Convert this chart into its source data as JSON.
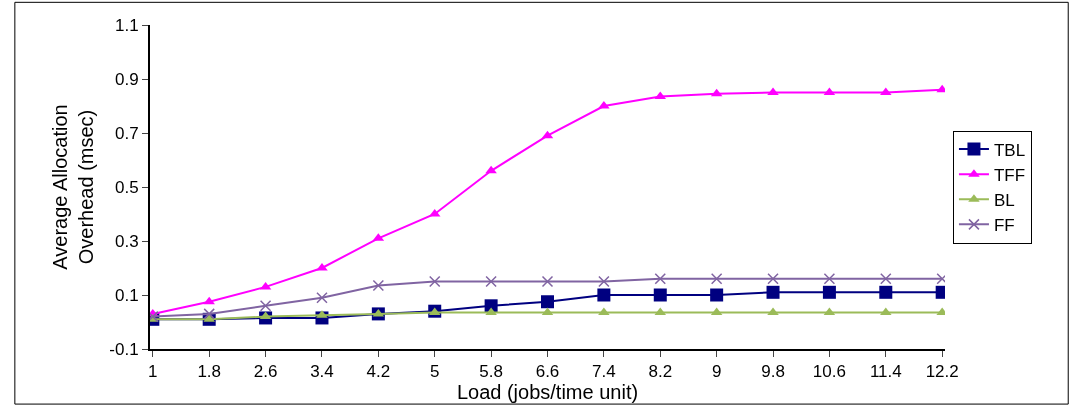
{
  "chart_data": {
    "type": "line",
    "xlabel": "Load (jobs/time unit)",
    "ylabel": "Average Allocation Overhead (msec)",
    "categories": [
      "1",
      "1.8",
      "2.6",
      "3.4",
      "4.2",
      "5",
      "5.8",
      "6.6",
      "7.4",
      "8.2",
      "9",
      "9.8",
      "10.6",
      "11.4",
      "12.2"
    ],
    "series": [
      {
        "name": "TBL",
        "color": "#000080",
        "marker": "square",
        "values": [
          0.01,
          0.01,
          0.015,
          0.015,
          0.03,
          0.04,
          0.06,
          0.075,
          0.1,
          0.1,
          0.1,
          0.11,
          0.11,
          0.11,
          0.11
        ]
      },
      {
        "name": "TFF",
        "color": "#ff00ff",
        "marker": "triangle",
        "values": [
          0.03,
          0.075,
          0.13,
          0.2,
          0.31,
          0.4,
          0.56,
          0.69,
          0.8,
          0.835,
          0.845,
          0.85,
          0.85,
          0.85,
          0.86
        ]
      },
      {
        "name": "BL",
        "color": "#9bbb59",
        "marker": "triangle",
        "values": [
          0.01,
          0.01,
          0.02,
          0.025,
          0.03,
          0.035,
          0.035,
          0.035,
          0.035,
          0.035,
          0.035,
          0.035,
          0.035,
          0.035,
          0.035
        ]
      },
      {
        "name": "FF",
        "color": "#8064a2",
        "marker": "cross",
        "values": [
          0.02,
          0.03,
          0.06,
          0.09,
          0.135,
          0.15,
          0.15,
          0.15,
          0.15,
          0.16,
          0.16,
          0.16,
          0.16,
          0.16,
          0.16
        ]
      }
    ],
    "ylim": [
      -0.1,
      1.1
    ],
    "yticks": [
      -0.1,
      0.1,
      0.3,
      0.5,
      0.7,
      0.9,
      1.1
    ],
    "grid": false,
    "legend": "right",
    "line_style": "solid"
  }
}
